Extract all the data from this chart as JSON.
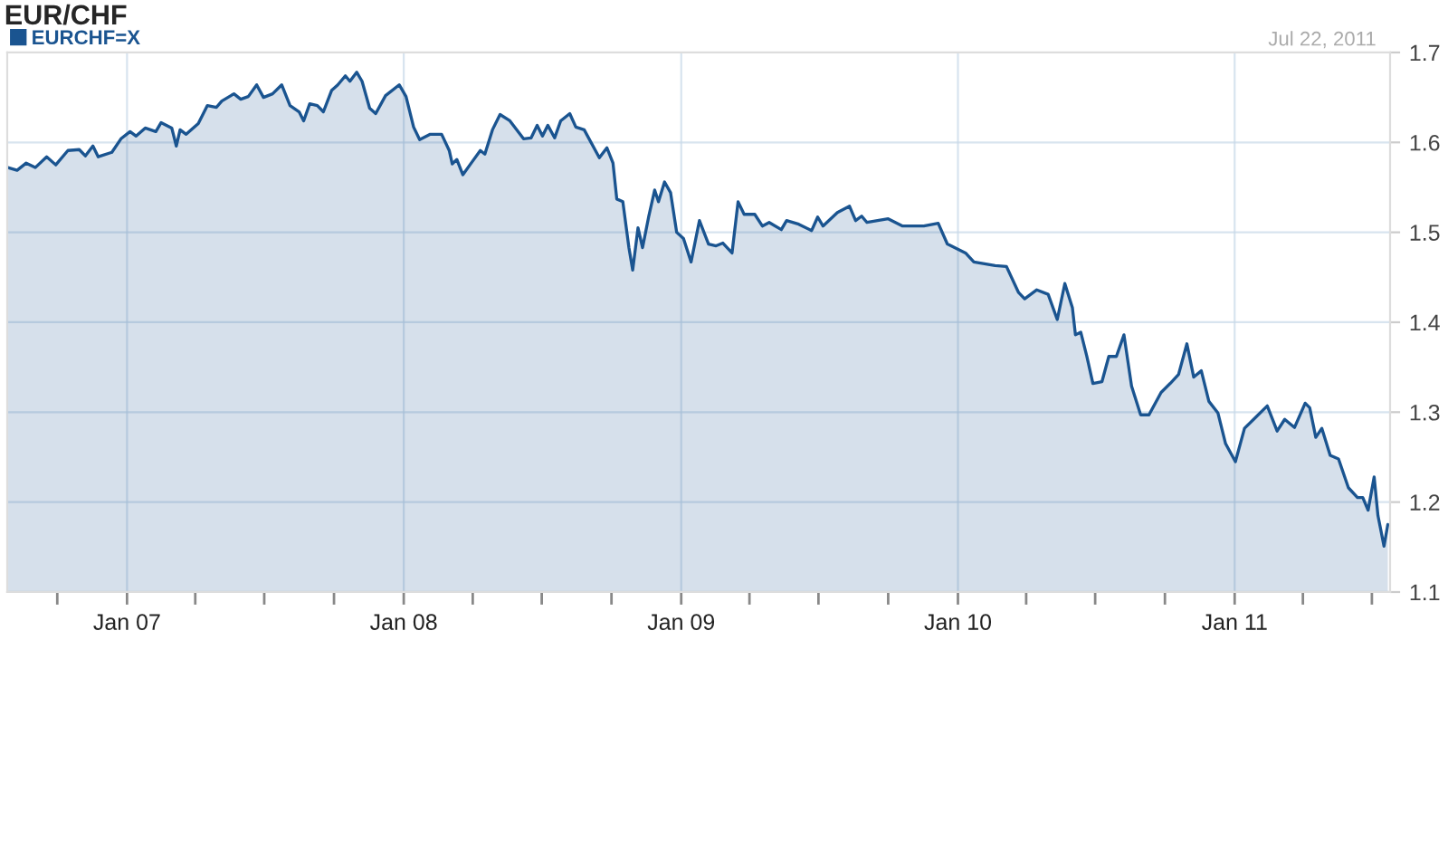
{
  "chart_data": {
    "type": "area",
    "title": "EUR/CHF",
    "annotations": [
      "Jul 22, 2011"
    ],
    "x": [
      "2006-07-28",
      "2006-08-09",
      "2006-08-21",
      "2006-09-02",
      "2006-09-17",
      "2006-09-29",
      "2006-10-15",
      "2006-10-30",
      "2006-11-07",
      "2006-11-17",
      "2006-11-24",
      "2006-12-12",
      "2006-12-24",
      "2007-01-05",
      "2007-01-13",
      "2007-01-25",
      "2007-02-08",
      "2007-02-15",
      "2007-03-01",
      "2007-03-07",
      "2007-03-12",
      "2007-03-20",
      "2007-04-05",
      "2007-04-17",
      "2007-04-29",
      "2007-05-06",
      "2007-05-22",
      "2007-05-31",
      "2007-06-10",
      "2007-06-21",
      "2007-06-30",
      "2007-07-12",
      "2007-07-24",
      "2007-08-04",
      "2007-08-16",
      "2007-08-22",
      "2007-08-30",
      "2007-09-09",
      "2007-09-17",
      "2007-09-28",
      "2007-10-06",
      "2007-10-16",
      "2007-10-22",
      "2007-10-31",
      "2007-11-07",
      "2007-11-17",
      "2007-11-25",
      "2007-12-08",
      "2007-12-26",
      "2008-01-04",
      "2008-01-14",
      "2008-01-22",
      "2008-02-05",
      "2008-02-20",
      "2008-03-01",
      "2008-03-05",
      "2008-03-11",
      "2008-03-19",
      "2008-03-30",
      "2008-04-11",
      "2008-04-17",
      "2008-04-27",
      "2008-05-07",
      "2008-05-20",
      "2008-06-07",
      "2008-06-17",
      "2008-06-25",
      "2008-07-02",
      "2008-07-09",
      "2008-07-18",
      "2008-07-26",
      "2008-08-07",
      "2008-08-15",
      "2008-08-26",
      "2008-09-15",
      "2008-09-25",
      "2008-10-03",
      "2008-10-08",
      "2008-10-16",
      "2008-10-24",
      "2008-10-29",
      "2008-11-05",
      "2008-11-11",
      "2008-11-19",
      "2008-11-27",
      "2008-12-02",
      "2008-12-10",
      "2008-12-18",
      "2008-12-26",
      "2009-01-04",
      "2009-01-14",
      "2009-01-25",
      "2009-02-06",
      "2009-02-16",
      "2009-02-25",
      "2009-03-09",
      "2009-03-17",
      "2009-03-25",
      "2009-04-08",
      "2009-04-18",
      "2009-04-27",
      "2009-05-13",
      "2009-05-20",
      "2009-06-05",
      "2009-06-22",
      "2009-06-30",
      "2009-07-07",
      "2009-07-26",
      "2009-08-11",
      "2009-08-19",
      "2009-08-27",
      "2009-09-03",
      "2009-10-01",
      "2009-10-20",
      "2009-11-17",
      "2009-12-06",
      "2009-12-18",
      "2010-01-11",
      "2010-01-22",
      "2010-02-19",
      "2010-03-06",
      "2010-03-22",
      "2010-03-30",
      "2010-04-15",
      "2010-04-30",
      "2010-05-12",
      "2010-05-22",
      "2010-06-01",
      "2010-06-05",
      "2010-06-12",
      "2010-06-20",
      "2010-06-28",
      "2010-07-10",
      "2010-07-19",
      "2010-07-29",
      "2010-08-08",
      "2010-08-18",
      "2010-08-30",
      "2010-09-10",
      "2010-09-26",
      "2010-10-08",
      "2010-10-19",
      "2010-10-30",
      "2010-11-08",
      "2010-11-18",
      "2010-11-28",
      "2010-12-10",
      "2010-12-20",
      "2011-01-02",
      "2011-01-14",
      "2011-01-26",
      "2011-02-13",
      "2011-02-26",
      "2011-03-08",
      "2011-03-21",
      "2011-04-04",
      "2011-04-10",
      "2011-04-18",
      "2011-04-26",
      "2011-05-07",
      "2011-05-18",
      "2011-05-31",
      "2011-06-12",
      "2011-06-19",
      "2011-06-26",
      "2011-07-04",
      "2011-07-09",
      "2011-07-17",
      "2011-07-22"
    ],
    "series": [
      {
        "name": "EURCHF=X",
        "color": "#1a5490",
        "values": [
          1.572,
          1.569,
          1.577,
          1.572,
          1.584,
          1.575,
          1.591,
          1.592,
          1.585,
          1.596,
          1.584,
          1.589,
          1.604,
          1.612,
          1.607,
          1.616,
          1.612,
          1.622,
          1.616,
          1.596,
          1.614,
          1.609,
          1.621,
          1.641,
          1.639,
          1.646,
          1.654,
          1.648,
          1.651,
          1.664,
          1.65,
          1.654,
          1.664,
          1.641,
          1.634,
          1.624,
          1.643,
          1.641,
          1.634,
          1.658,
          1.664,
          1.674,
          1.668,
          1.678,
          1.668,
          1.638,
          1.632,
          1.652,
          1.664,
          1.651,
          1.617,
          1.603,
          1.609,
          1.609,
          1.591,
          1.576,
          1.581,
          1.564,
          1.577,
          1.591,
          1.587,
          1.614,
          1.631,
          1.624,
          1.604,
          1.605,
          1.619,
          1.607,
          1.619,
          1.605,
          1.624,
          1.632,
          1.617,
          1.614,
          1.583,
          1.594,
          1.577,
          1.537,
          1.534,
          1.483,
          1.458,
          1.505,
          1.483,
          1.517,
          1.547,
          1.534,
          1.556,
          1.544,
          1.5,
          1.493,
          1.467,
          1.513,
          1.487,
          1.485,
          1.488,
          1.477,
          1.534,
          1.52,
          1.52,
          1.507,
          1.511,
          1.503,
          1.513,
          1.509,
          1.502,
          1.517,
          1.507,
          1.522,
          1.529,
          1.513,
          1.518,
          1.511,
          1.515,
          1.507,
          1.507,
          1.51,
          1.487,
          1.477,
          1.467,
          1.463,
          1.462,
          1.433,
          1.426,
          1.436,
          1.431,
          1.403,
          1.443,
          1.416,
          1.386,
          1.389,
          1.362,
          1.332,
          1.334,
          1.362,
          1.362,
          1.386,
          1.329,
          1.297,
          1.297,
          1.322,
          1.332,
          1.342,
          1.376,
          1.339,
          1.346,
          1.312,
          1.299,
          1.265,
          1.245,
          1.282,
          1.292,
          1.307,
          1.279,
          1.292,
          1.283,
          1.31,
          1.305,
          1.272,
          1.282,
          1.252,
          1.248,
          1.216,
          1.205,
          1.205,
          1.191,
          1.228,
          1.185,
          1.151,
          1.175
        ]
      }
    ],
    "xlim": [
      "2006-07-27",
      "2011-07-25"
    ],
    "xticks": [
      {
        "value": "2006-10-01",
        "label": null
      },
      {
        "value": "2007-01-01",
        "label": "Jan 07"
      },
      {
        "value": "2007-04-01",
        "label": null
      },
      {
        "value": "2007-07-01",
        "label": null
      },
      {
        "value": "2007-10-01",
        "label": null
      },
      {
        "value": "2008-01-01",
        "label": "Jan 08"
      },
      {
        "value": "2008-04-01",
        "label": null
      },
      {
        "value": "2008-07-01",
        "label": null
      },
      {
        "value": "2008-10-01",
        "label": null
      },
      {
        "value": "2009-01-01",
        "label": "Jan 09"
      },
      {
        "value": "2009-04-01",
        "label": null
      },
      {
        "value": "2009-07-01",
        "label": null
      },
      {
        "value": "2009-10-01",
        "label": null
      },
      {
        "value": "2010-01-01",
        "label": "Jan 10"
      },
      {
        "value": "2010-04-01",
        "label": null
      },
      {
        "value": "2010-07-01",
        "label": null
      },
      {
        "value": "2010-10-01",
        "label": null
      },
      {
        "value": "2011-01-01",
        "label": "Jan 11"
      },
      {
        "value": "2011-04-01",
        "label": null
      },
      {
        "value": "2011-07-01",
        "label": null
      }
    ],
    "ylim": [
      1.1,
      1.7
    ],
    "yticks": [
      1.1,
      1.2,
      1.3,
      1.4,
      1.5,
      1.6,
      1.7
    ],
    "grid": true,
    "legend": "top left",
    "line_style": "solid"
  }
}
